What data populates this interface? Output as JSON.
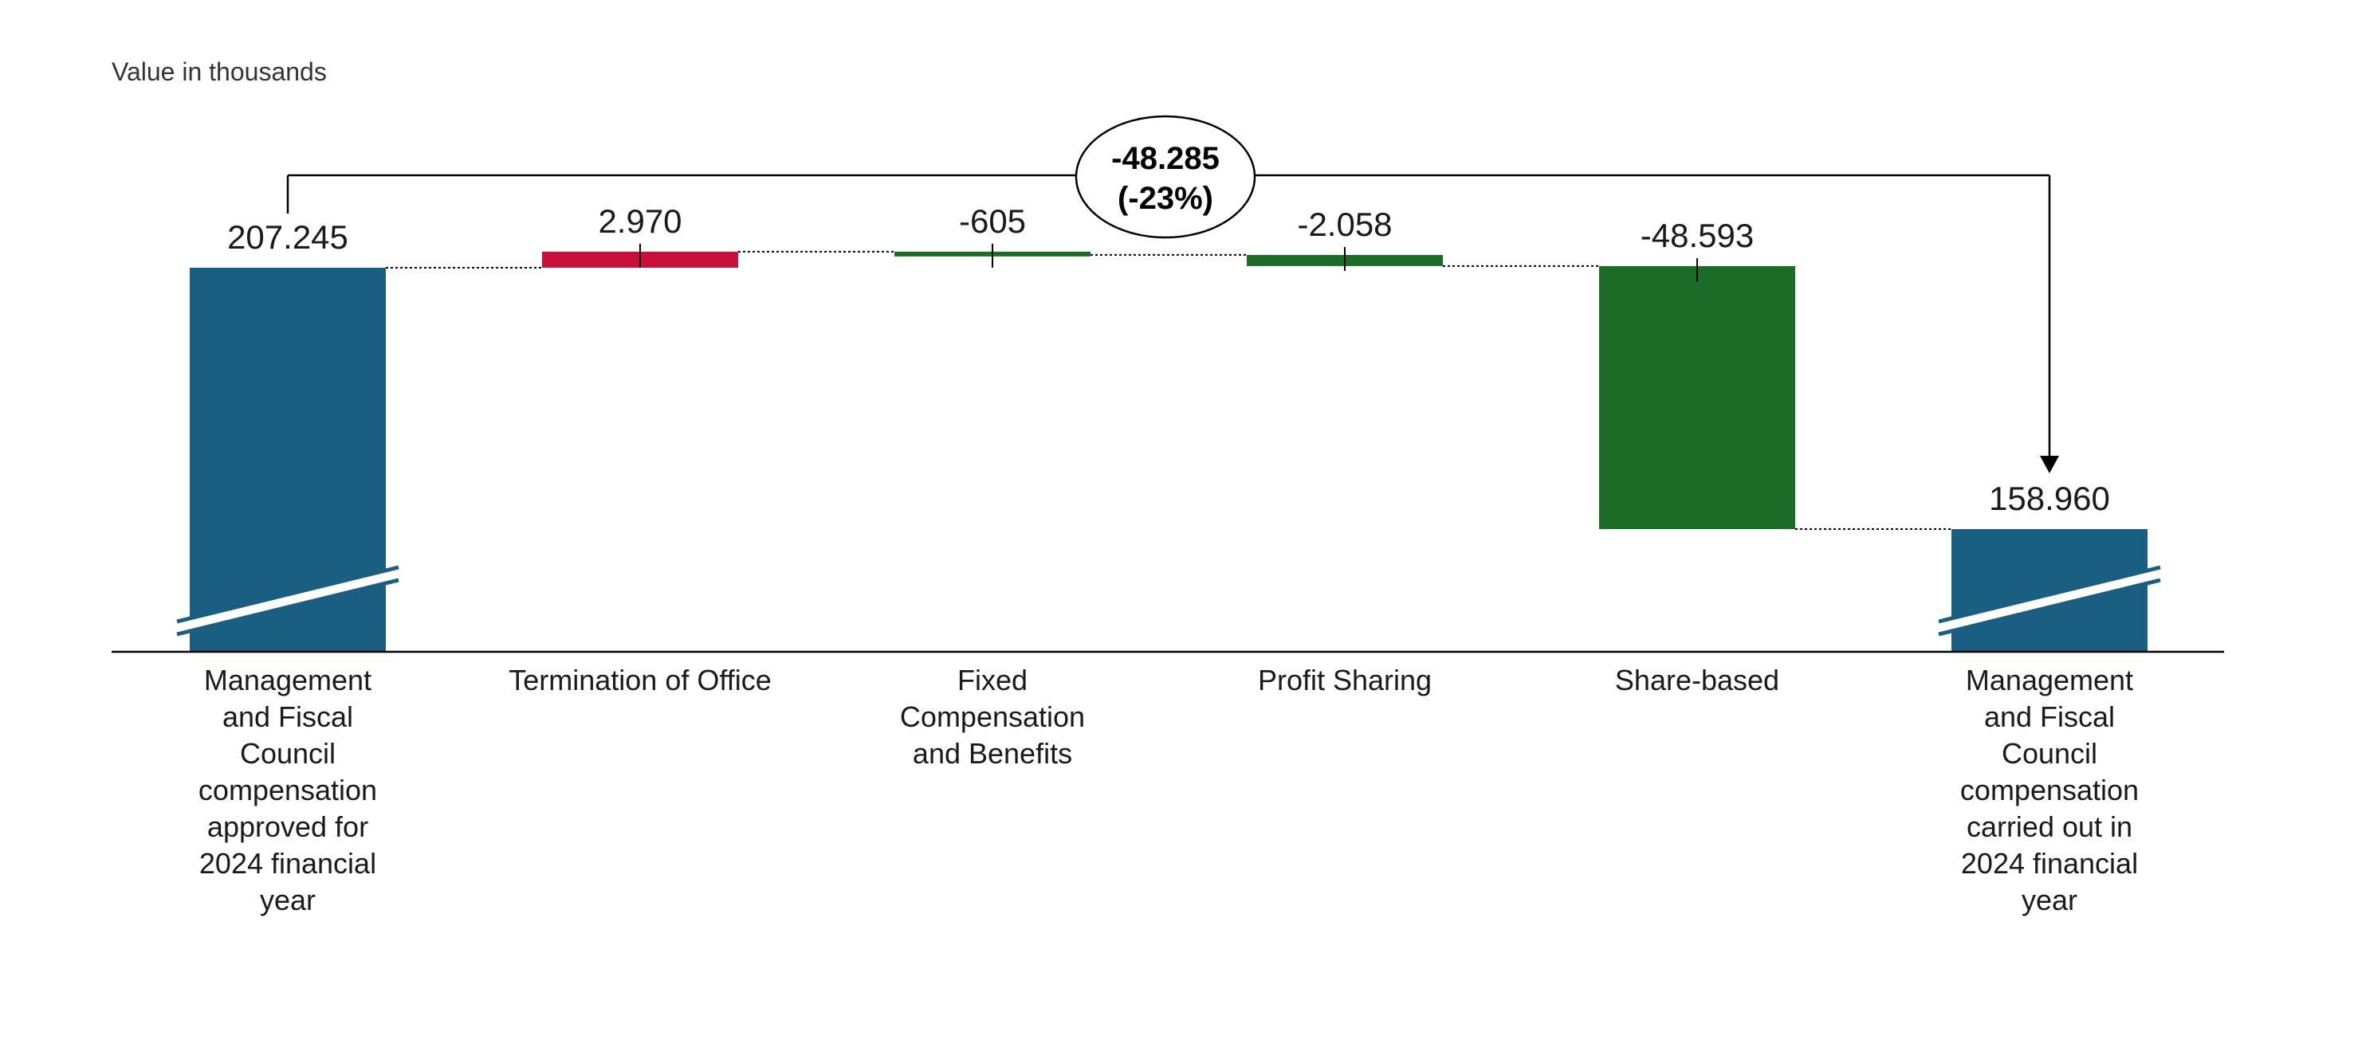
{
  "chart_data": {
    "type": "bar",
    "subtype": "waterfall",
    "unit_note": "Value in thousands",
    "categories": [
      "Management and Fiscal Council compensation approved for 2024 financial year",
      "Termination of Office",
      "Fixed Compensation and Benefits",
      "Profit Sharing",
      "Share-based",
      "Management and Fiscal Council compensation carried out in 2024 financial year"
    ],
    "category_lines": [
      [
        "Management",
        "and Fiscal",
        "Council",
        "compensation",
        "approved for",
        "2024 financial",
        "year"
      ],
      [
        "Termination of Office"
      ],
      [
        "Fixed",
        "Compensation",
        "and Benefits"
      ],
      [
        "Profit Sharing"
      ],
      [
        "Share-based"
      ],
      [
        "Management",
        "and Fiscal",
        "Council",
        "compensation",
        "carried out in",
        "2024 financial",
        "year"
      ]
    ],
    "values": [
      207245,
      2970,
      -605,
      -2058,
      -48593,
      158960
    ],
    "value_labels": [
      "207.245",
      "2.970",
      "-605",
      "-2.058",
      "-48.593",
      "158.960"
    ],
    "bar_kinds": [
      "total",
      "delta",
      "delta",
      "delta",
      "delta",
      "total"
    ],
    "ylim": [
      110000,
      215000
    ],
    "axis_break": true,
    "total_change": {
      "value_label": "-48.285",
      "percent_label": "(-23%)"
    },
    "colors": {
      "total": "#1a5e82",
      "increase": "#c8103d",
      "decrease": "#1c6b26",
      "axis": "#000000",
      "connector": "#000000"
    }
  }
}
